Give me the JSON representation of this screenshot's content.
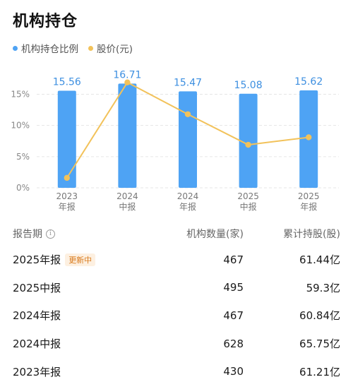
{
  "header": {
    "title": "机构持仓"
  },
  "legend": [
    {
      "label": "机构持仓比例",
      "color": "#4ea3f4"
    },
    {
      "label": "股价(元)",
      "color": "#f2c25a"
    }
  ],
  "chart_data": {
    "type": "bar",
    "categories": [
      [
        "2023",
        "年报"
      ],
      [
        "2024",
        "中报"
      ],
      [
        "2024",
        "年报"
      ],
      [
        "2025",
        "中报"
      ],
      [
        "2025",
        "年报"
      ]
    ],
    "series": [
      {
        "name": "机构持仓比例",
        "type": "bar",
        "unit": "%",
        "values": [
          15.56,
          16.71,
          15.47,
          15.08,
          15.62
        ],
        "color": "#4ea3f4"
      },
      {
        "name": "股价(元)",
        "type": "line",
        "values": [
          1.6,
          16.9,
          11.8,
          6.9,
          8.1
        ],
        "color": "#f2c25a"
      }
    ],
    "bar_labels": [
      "15.56",
      "16.71",
      "15.47",
      "15.08",
      "15.62"
    ],
    "y_ticks": [
      "0%",
      "5%",
      "10%",
      "15%"
    ],
    "ylim": [
      0,
      18
    ],
    "grid": true
  },
  "table": {
    "headers": [
      "报告期",
      "机构数量(家)",
      "累计持股(股)"
    ],
    "info_icon": "i",
    "rows": [
      {
        "period": "2025年报",
        "badge": "更新中",
        "count": "467",
        "shares": "61.44亿"
      },
      {
        "period": "2025中报",
        "badge": "",
        "count": "495",
        "shares": "59.3亿"
      },
      {
        "period": "2024年报",
        "badge": "",
        "count": "467",
        "shares": "60.84亿"
      },
      {
        "period": "2024中报",
        "badge": "",
        "count": "628",
        "shares": "65.75亿"
      },
      {
        "period": "2023年报",
        "badge": "",
        "count": "430",
        "shares": "61.21亿"
      }
    ]
  }
}
